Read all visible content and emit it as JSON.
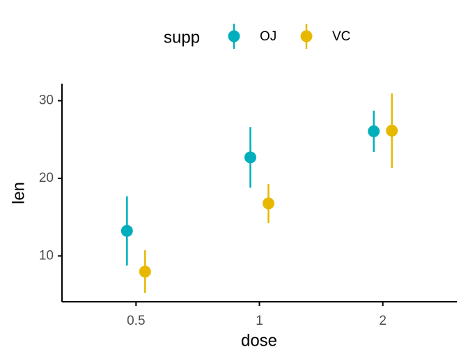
{
  "chart_data": {
    "type": "pointrange",
    "legend_title": "supp",
    "legend_position": "top",
    "x_label": "dose",
    "y_label": "len",
    "categories": [
      "0.5",
      "1",
      "2"
    ],
    "series": [
      {
        "name": "OJ",
        "color": "#00AFBB",
        "values": [
          13.23,
          22.7,
          26.06
        ],
        "error": [
          4.46,
          3.91,
          2.66
        ]
      },
      {
        "name": "VC",
        "color": "#E7B800",
        "values": [
          7.98,
          16.77,
          26.14
        ],
        "error": [
          2.75,
          2.52,
          4.8
        ]
      }
    ],
    "ylim": [
      4.1,
      32.2
    ],
    "yticks": [
      10,
      20,
      30
    ],
    "grid": false
  }
}
